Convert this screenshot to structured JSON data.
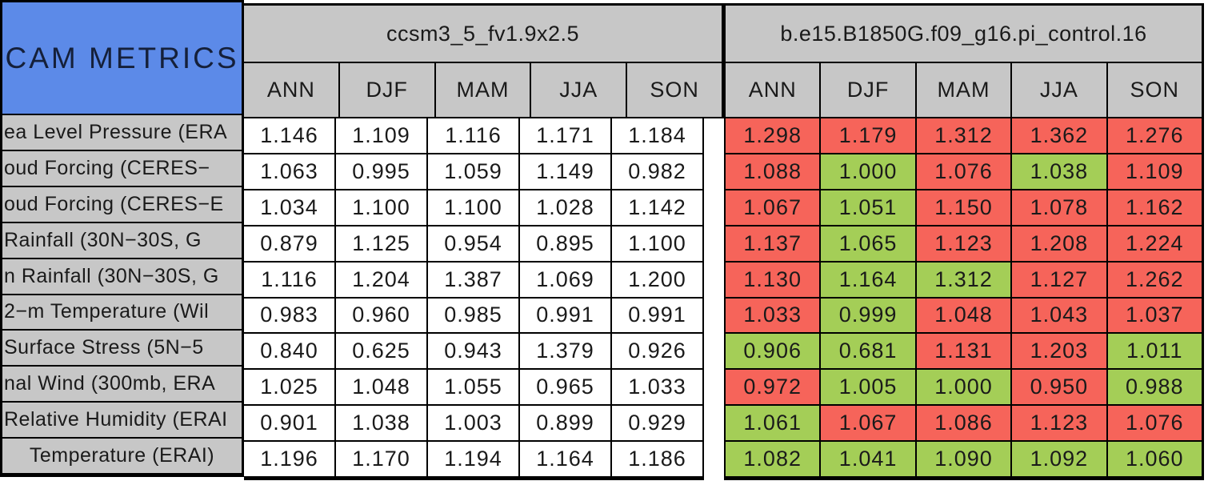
{
  "chart_data": {
    "type": "table",
    "title": "CAM METRICS",
    "description_colors": {
      "title_background_blue": "#5c8ae8",
      "header_background_gray": "#c7c7c7",
      "model1_cell_background": "#ffffff",
      "model2_cell_red": "#f6645a",
      "model2_cell_green": "#a4ce57",
      "grid_border": "#000000"
    },
    "models": [
      {
        "name": "ccsm3_5_fv1.9x2.5"
      },
      {
        "name": "b.e15.B1850G.f09_g16.pi_control.16"
      }
    ],
    "seasons": [
      "ANN",
      "DJF",
      "MAM",
      "JJA",
      "SON"
    ],
    "rows": [
      {
        "label": "ea Level Pressure (ERA",
        "m1": [
          "1.146",
          "1.109",
          "1.116",
          "1.171",
          "1.184"
        ],
        "m2": [
          "1.298",
          "1.179",
          "1.312",
          "1.362",
          "1.276"
        ],
        "m2_colors": [
          "red",
          "red",
          "red",
          "red",
          "red"
        ]
      },
      {
        "label": "oud Forcing (CERES−",
        "m1": [
          "1.063",
          "0.995",
          "1.059",
          "1.149",
          "0.982"
        ],
        "m2": [
          "1.088",
          "1.000",
          "1.076",
          "1.038",
          "1.109"
        ],
        "m2_colors": [
          "red",
          "green",
          "red",
          "green",
          "red"
        ]
      },
      {
        "label": "oud Forcing (CERES−E",
        "m1": [
          "1.034",
          "1.100",
          "1.100",
          "1.028",
          "1.142"
        ],
        "m2": [
          "1.067",
          "1.051",
          "1.150",
          "1.078",
          "1.162"
        ],
        "m2_colors": [
          "red",
          "green",
          "red",
          "red",
          "red"
        ]
      },
      {
        "label": "Rainfall (30N−30S, G",
        "m1": [
          "0.879",
          "1.125",
          "0.954",
          "0.895",
          "1.100"
        ],
        "m2": [
          "1.137",
          "1.065",
          "1.123",
          "1.208",
          "1.224"
        ],
        "m2_colors": [
          "red",
          "green",
          "red",
          "red",
          "red"
        ]
      },
      {
        "label": "n Rainfall (30N−30S, G",
        "m1": [
          "1.116",
          "1.204",
          "1.387",
          "1.069",
          "1.200"
        ],
        "m2": [
          "1.130",
          "1.164",
          "1.312",
          "1.127",
          "1.262"
        ],
        "m2_colors": [
          "red",
          "green",
          "green",
          "red",
          "red"
        ]
      },
      {
        "label": "2−m Temperature (Wil",
        "m1": [
          "0.983",
          "0.960",
          "0.985",
          "0.991",
          "0.991"
        ],
        "m2": [
          "1.033",
          "0.999",
          "1.048",
          "1.043",
          "1.037"
        ],
        "m2_colors": [
          "red",
          "green",
          "red",
          "red",
          "red"
        ]
      },
      {
        "label": "Surface Stress (5N−5",
        "m1": [
          "0.840",
          "0.625",
          "0.943",
          "1.379",
          "0.926"
        ],
        "m2": [
          "0.906",
          "0.681",
          "1.131",
          "1.203",
          "1.011"
        ],
        "m2_colors": [
          "green",
          "green",
          "red",
          "red",
          "green"
        ]
      },
      {
        "label": "nal Wind (300mb, ERA",
        "m1": [
          "1.025",
          "1.048",
          "1.055",
          "0.965",
          "1.033"
        ],
        "m2": [
          "0.972",
          "1.005",
          "1.000",
          "0.950",
          "0.988"
        ],
        "m2_colors": [
          "red",
          "green",
          "green",
          "red",
          "green"
        ]
      },
      {
        "label": "Relative Humidity (ERAI",
        "m1": [
          "0.901",
          "1.038",
          "1.003",
          "0.899",
          "0.929"
        ],
        "m2": [
          "1.061",
          "1.067",
          "1.086",
          "1.123",
          "1.076"
        ],
        "m2_colors": [
          "green",
          "red",
          "red",
          "red",
          "red"
        ]
      },
      {
        "label": "Temperature (ERAI)",
        "m1": [
          "1.196",
          "1.170",
          "1.194",
          "1.164",
          "1.186"
        ],
        "m2": [
          "1.082",
          "1.041",
          "1.090",
          "1.092",
          "1.060"
        ],
        "m2_colors": [
          "green",
          "green",
          "green",
          "green",
          "green"
        ]
      }
    ]
  }
}
